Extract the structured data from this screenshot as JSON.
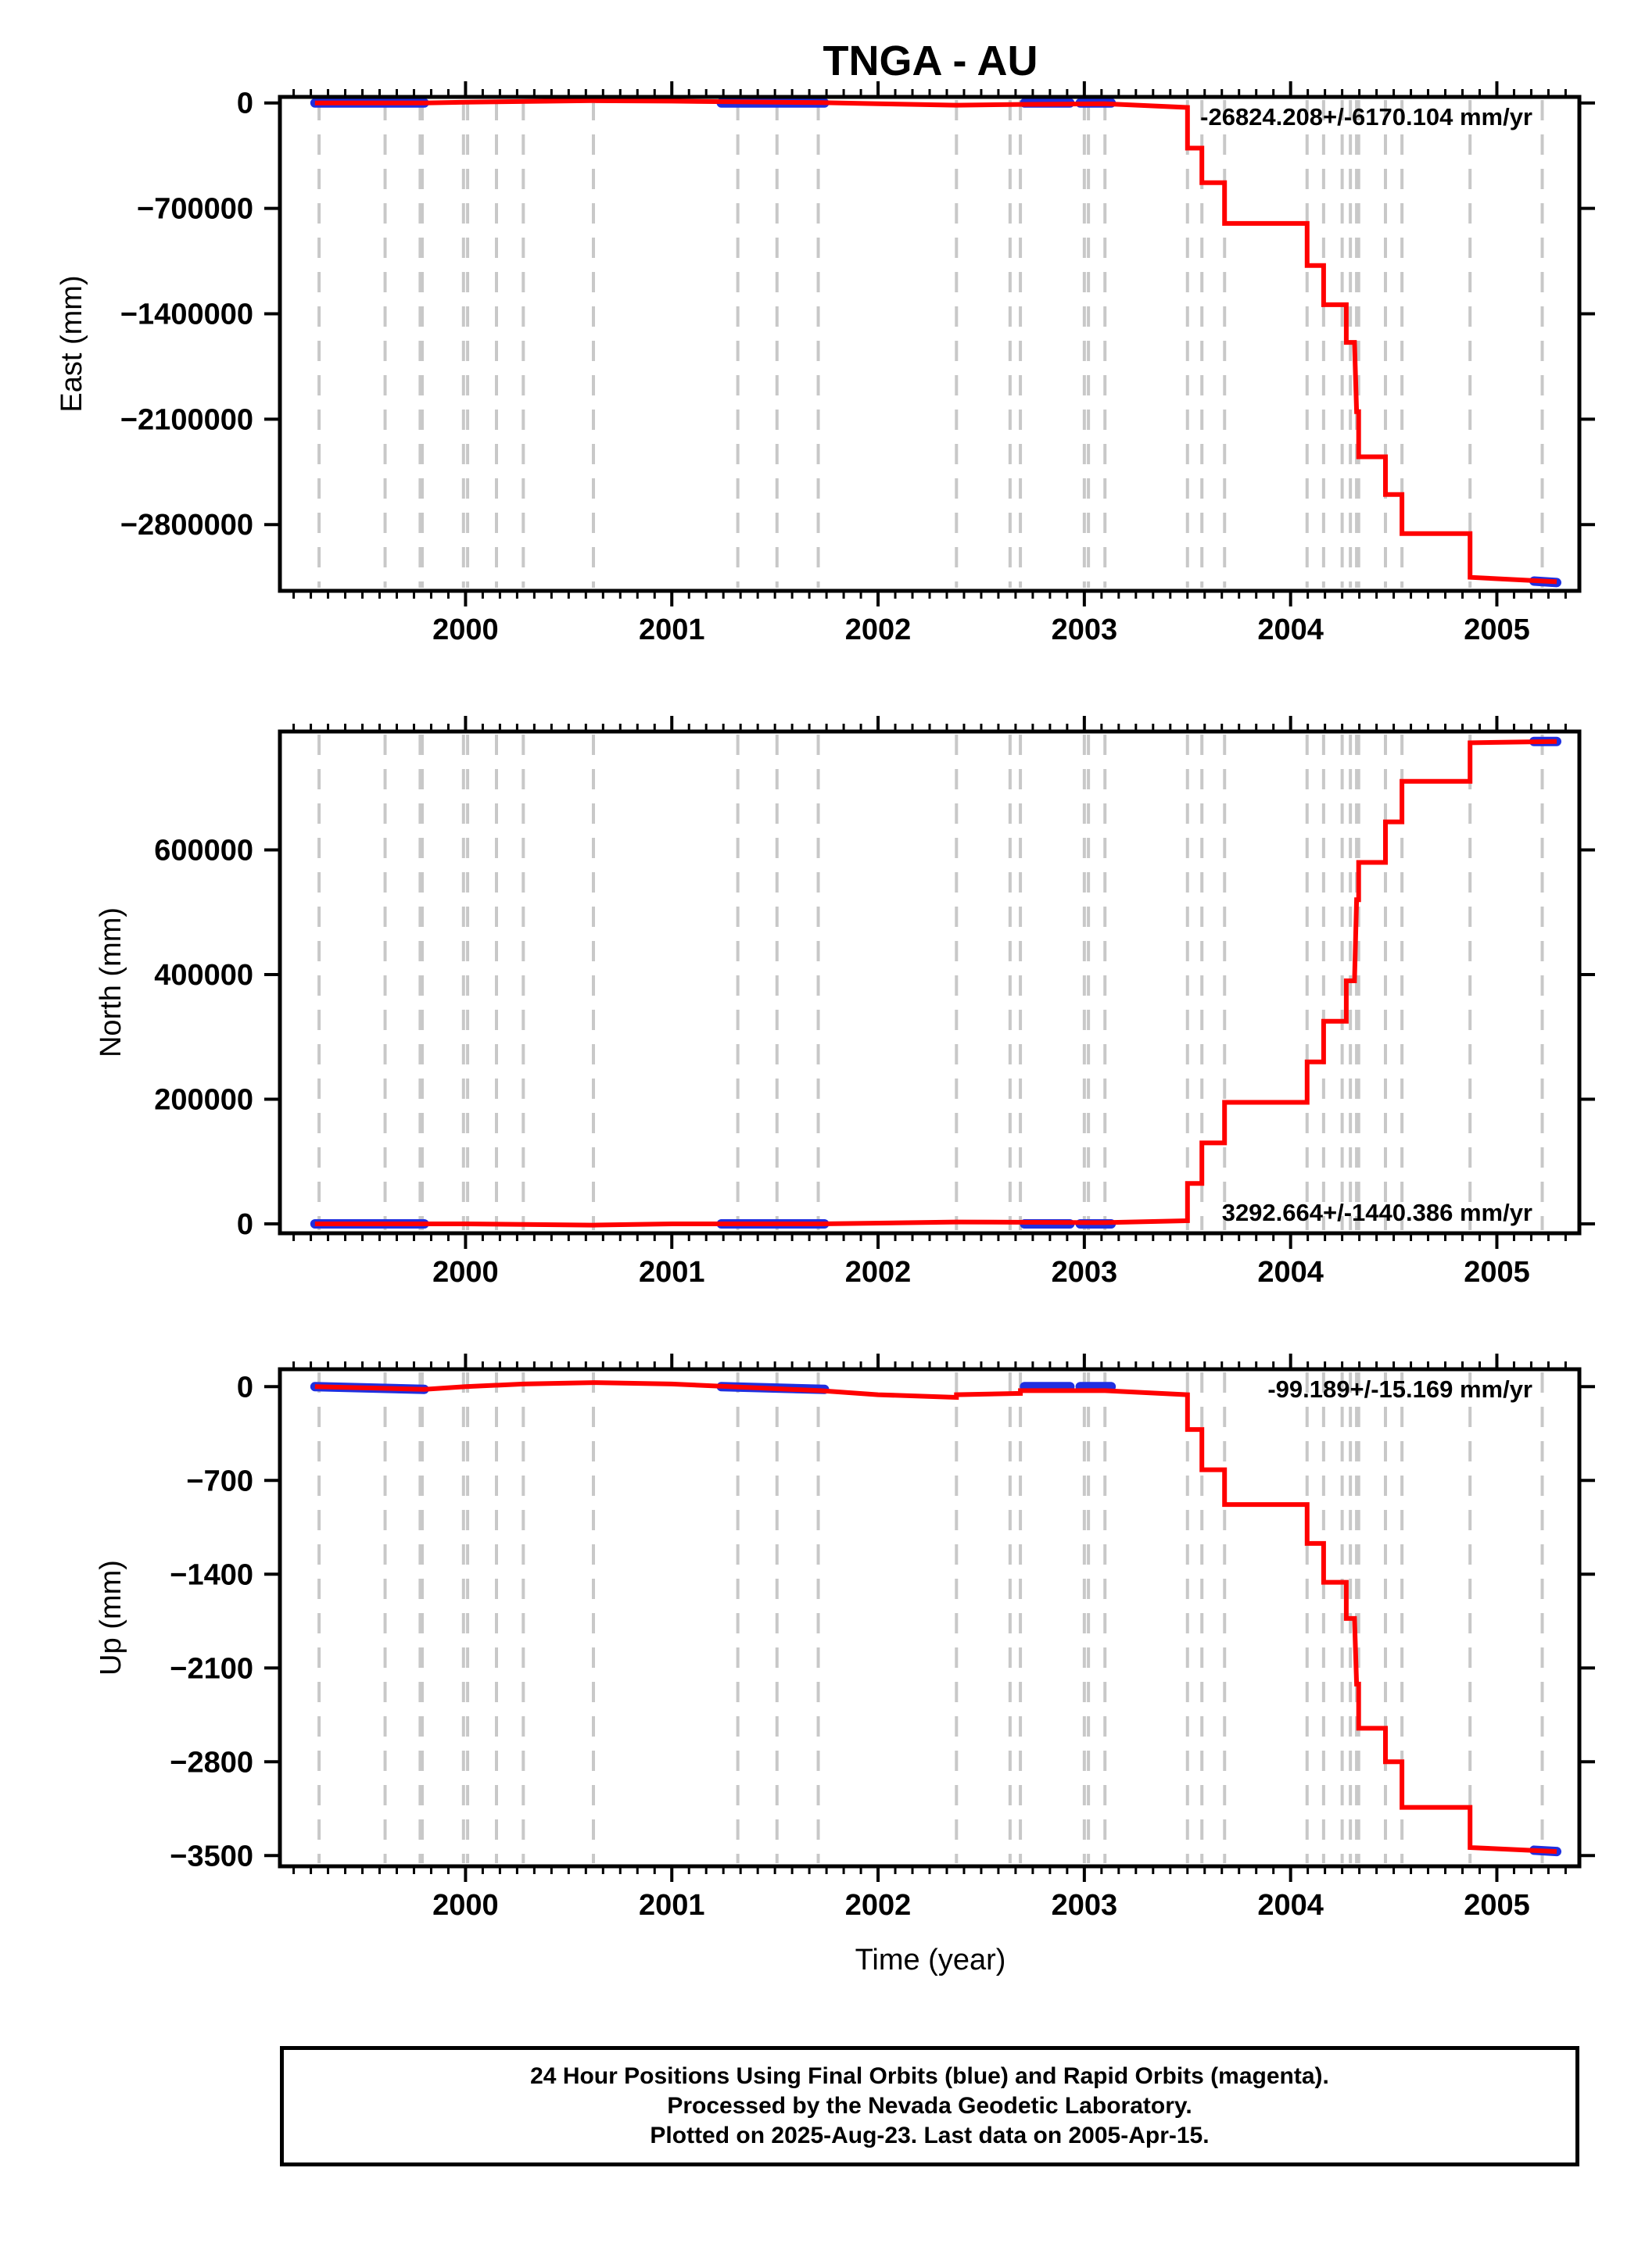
{
  "title": "TNGA - AU",
  "xlabel": "Time (year)",
  "colors": {
    "model_line": "#ff0000",
    "final_orbits": "#1f2fe0",
    "step_markers": "#c8c8c8",
    "axis": "#000000"
  },
  "caption": {
    "line1": "24 Hour Positions Using Final Orbits (blue) and Rapid Orbits (magenta).",
    "line2": "Processed by the Nevada Geodetic Laboratory.",
    "line3": "Plotted on 2025-Aug-23. Last data on 2005-Apr-15."
  },
  "chart_data": [
    {
      "type": "line",
      "ylabel": "East (mm)",
      "rate_text": "-26824.208+/-6170.104 mm/yr",
      "xlim": [
        1999.1,
        2005.4
      ],
      "ylim": [
        -3240000,
        40000
      ],
      "xticks": [
        2000,
        2001,
        2002,
        2003,
        2004,
        2005
      ],
      "yticks": [
        0,
        -700000,
        -1400000,
        -2100000,
        -2800000
      ],
      "ytick_labels": [
        "0",
        "−700000",
        "−1400000",
        "−2100000",
        "−2800000"
      ],
      "step_dates": [
        1999.29,
        1999.61,
        1999.78,
        1999.79,
        1999.99,
        2000.01,
        2000.15,
        2000.28,
        2000.62,
        2001.32,
        2001.51,
        2001.71,
        2002.38,
        2002.64,
        2002.69,
        2003.0,
        2003.02,
        2003.1,
        2003.5,
        2003.57,
        2003.68,
        2004.08,
        2004.16,
        2004.25,
        2004.29,
        2004.32,
        2004.33,
        2004.46,
        2004.54,
        2004.87,
        2005.22
      ],
      "model": {
        "x": [
          1999.27,
          1999.8,
          2000.0,
          2000.62,
          2001.0,
          2001.72,
          2002.0,
          2002.38,
          2002.69,
          2003.1,
          2003.5,
          2003.5,
          2003.57,
          2003.57,
          2003.68,
          2003.68,
          2004.08,
          2004.08,
          2004.16,
          2004.16,
          2004.27,
          2004.27,
          2004.31,
          2004.32,
          2004.33,
          2004.33,
          2004.46,
          2004.46,
          2004.54,
          2004.54,
          2004.87,
          2004.87,
          2005.29
        ],
        "y": [
          0,
          0,
          5000,
          15000,
          12000,
          2000,
          -5000,
          -15000,
          -10000,
          -5000,
          -30000,
          -300000,
          -300000,
          -530000,
          -530000,
          -800000,
          -800000,
          -1080000,
          -1080000,
          -1340000,
          -1340000,
          -1590000,
          -1590000,
          -2050000,
          -2050000,
          -2350000,
          -2350000,
          -2600000,
          -2600000,
          -2860000,
          -2860000,
          -3150000,
          -3180000
        ]
      },
      "data_segments": [
        {
          "x": [
            1999.27,
            1999.8
          ],
          "y": [
            0,
            0
          ]
        },
        {
          "x": [
            2001.24,
            2001.74
          ],
          "y": [
            0,
            0
          ]
        },
        {
          "x": [
            2002.71,
            2002.93
          ],
          "y": [
            0,
            0
          ]
        },
        {
          "x": [
            2002.98,
            2003.13
          ],
          "y": [
            0,
            0
          ]
        },
        {
          "x": [
            2005.18,
            2005.29
          ],
          "y": [
            -3175000,
            -3185000
          ]
        }
      ]
    },
    {
      "type": "line",
      "ylabel": "North (mm)",
      "rate_text": "3292.664+/-1440.386 mm/yr",
      "xlim": [
        1999.1,
        2005.4
      ],
      "ylim": [
        -15000,
        790000
      ],
      "xticks": [
        2000,
        2001,
        2002,
        2003,
        2004,
        2005
      ],
      "yticks": [
        0,
        200000,
        400000,
        600000
      ],
      "ytick_labels": [
        "0",
        "200000",
        "400000",
        "600000"
      ],
      "step_dates": [
        1999.29,
        1999.61,
        1999.78,
        1999.79,
        1999.99,
        2000.01,
        2000.15,
        2000.28,
        2000.62,
        2001.32,
        2001.51,
        2001.71,
        2002.38,
        2002.64,
        2002.69,
        2003.0,
        2003.02,
        2003.1,
        2003.5,
        2003.57,
        2003.68,
        2004.08,
        2004.16,
        2004.25,
        2004.29,
        2004.32,
        2004.33,
        2004.46,
        2004.54,
        2004.87,
        2005.22
      ],
      "model": {
        "x": [
          1999.27,
          2000.0,
          2000.62,
          2001.0,
          2001.72,
          2002.38,
          2003.1,
          2003.5,
          2003.5,
          2003.57,
          2003.57,
          2003.68,
          2003.68,
          2004.08,
          2004.08,
          2004.16,
          2004.16,
          2004.27,
          2004.27,
          2004.31,
          2004.32,
          2004.33,
          2004.33,
          2004.46,
          2004.46,
          2004.54,
          2004.54,
          2004.87,
          2004.87,
          2005.29
        ],
        "y": [
          0,
          0,
          -2000,
          0,
          0,
          3000,
          2000,
          5000,
          65000,
          65000,
          130000,
          130000,
          195000,
          195000,
          260000,
          260000,
          325000,
          325000,
          390000,
          390000,
          520000,
          520000,
          580000,
          580000,
          645000,
          645000,
          710000,
          710000,
          772000,
          774000
        ]
      },
      "data_segments": [
        {
          "x": [
            1999.27,
            1999.8
          ],
          "y": [
            0,
            0
          ]
        },
        {
          "x": [
            2001.24,
            2001.74
          ],
          "y": [
            0,
            0
          ]
        },
        {
          "x": [
            2002.71,
            2002.93
          ],
          "y": [
            0,
            0
          ]
        },
        {
          "x": [
            2002.98,
            2003.13
          ],
          "y": [
            0,
            0
          ]
        },
        {
          "x": [
            2005.18,
            2005.29
          ],
          "y": [
            774000,
            774000
          ]
        }
      ]
    },
    {
      "type": "line",
      "ylabel": "Up (mm)",
      "rate_text": "-99.189+/-15.169 mm/yr",
      "xlim": [
        1999.1,
        2005.4
      ],
      "ylim": [
        -3580,
        130
      ],
      "xticks": [
        2000,
        2001,
        2002,
        2003,
        2004,
        2005
      ],
      "yticks": [
        0,
        -700,
        -1400,
        -2100,
        -2800,
        -3500
      ],
      "ytick_labels": [
        "0",
        "−700",
        "−1400",
        "−2100",
        "−2800",
        "−3500"
      ],
      "step_dates": [
        1999.29,
        1999.61,
        1999.78,
        1999.79,
        1999.99,
        2000.01,
        2000.15,
        2000.28,
        2000.62,
        2001.32,
        2001.51,
        2001.71,
        2002.38,
        2002.64,
        2002.69,
        2003.0,
        2003.02,
        2003.1,
        2003.5,
        2003.57,
        2003.68,
        2004.08,
        2004.16,
        2004.25,
        2004.29,
        2004.32,
        2004.33,
        2004.46,
        2004.54,
        2004.87,
        2005.22
      ],
      "model": {
        "x": [
          1999.27,
          1999.8,
          2000.0,
          2000.28,
          2000.62,
          2001.0,
          2001.72,
          2002.0,
          2002.38,
          2002.38,
          2002.69,
          2002.69,
          2003.1,
          2003.5,
          2003.5,
          2003.57,
          2003.57,
          2003.68,
          2003.68,
          2004.08,
          2004.08,
          2004.16,
          2004.16,
          2004.27,
          2004.27,
          2004.31,
          2004.32,
          2004.33,
          2004.33,
          2004.46,
          2004.46,
          2004.54,
          2004.54,
          2004.87,
          2004.87,
          2005.29
        ],
        "y": [
          0,
          -20,
          0,
          20,
          30,
          20,
          -30,
          -60,
          -80,
          -60,
          -50,
          -30,
          -30,
          -60,
          -320,
          -320,
          -620,
          -620,
          -880,
          -880,
          -1170,
          -1170,
          -1460,
          -1460,
          -1730,
          -1730,
          -2220,
          -2220,
          -2550,
          -2550,
          -2800,
          -2800,
          -3140,
          -3140,
          -3440,
          -3470
        ]
      },
      "data_segments": [
        {
          "x": [
            1999.27,
            1999.8
          ],
          "y": [
            0,
            -20
          ]
        },
        {
          "x": [
            2001.24,
            2001.74
          ],
          "y": [
            0,
            -20
          ]
        },
        {
          "x": [
            2002.71,
            2002.93
          ],
          "y": [
            0,
            0
          ]
        },
        {
          "x": [
            2002.98,
            2003.13
          ],
          "y": [
            0,
            0
          ]
        },
        {
          "x": [
            2005.18,
            2005.29
          ],
          "y": [
            -3460,
            -3470
          ]
        }
      ]
    }
  ]
}
